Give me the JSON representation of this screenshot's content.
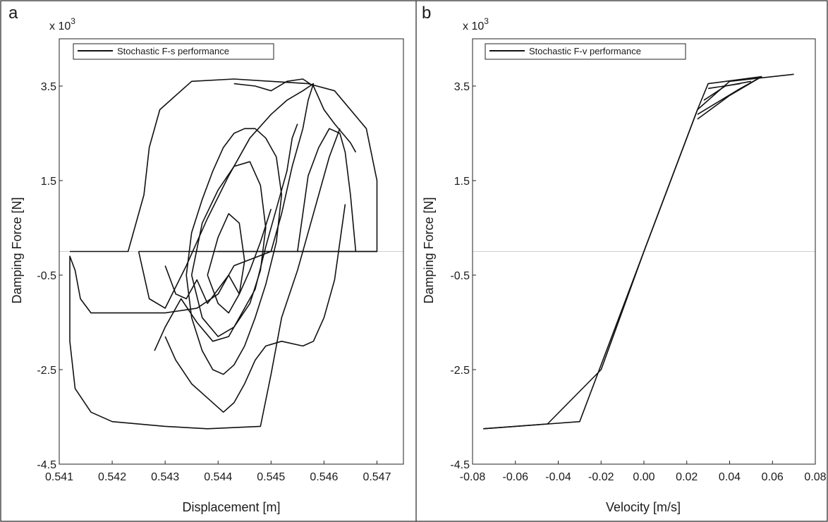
{
  "chart_data": [
    {
      "type": "line",
      "panel_letter": "a",
      "multiplier_label": "x 10",
      "multiplier_exp": "3",
      "xlabel": "Displacement [m]",
      "ylabel": "Damping Force [N]",
      "xlim": [
        0.541,
        0.5475
      ],
      "ylim": [
        -4.5,
        4.5
      ],
      "xticks": [
        "0.541",
        "0.542",
        "0.543",
        "0.544",
        "0.545",
        "0.546",
        "0.547"
      ],
      "yticks": [
        "3.5",
        "1.5",
        "-0.5",
        "-2.5",
        "-4.5"
      ],
      "ytick_values": [
        3.5,
        1.5,
        -0.5,
        -2.5,
        -4.5
      ],
      "grid": false,
      "reference_line_y": 0,
      "legend_position": "top-left",
      "series": [
        {
          "name": "Stochastic F-s performance",
          "color": "#111111",
          "segments": [
            {
              "x": [
                0.5412,
                0.5423,
                0.5426,
                0.5427,
                0.5429,
                0.5435,
                0.5443,
                0.545,
                0.5457,
                0.5462,
                0.5468,
                0.547,
                0.547,
                0.5468,
                0.5465,
                0.5462,
                0.5458,
                0.5455,
                0.545,
                0.5445,
                0.544
              ],
              "y": [
                0.0,
                0.0,
                1.2,
                2.2,
                3.0,
                3.6,
                3.65,
                3.6,
                3.55,
                3.4,
                2.6,
                1.5,
                0.0,
                0.0,
                0.0,
                0.0,
                0.0,
                0.0,
                0.0,
                0.0,
                0.0
              ]
            },
            {
              "x": [
                0.547,
                0.545,
                0.5443,
                0.544,
                0.5436,
                0.543,
                0.542,
                0.5416,
                0.5414,
                0.5413,
                0.5412,
                0.5412,
                0.5413,
                0.5416,
                0.542,
                0.543,
                0.5438,
                0.5448,
                0.5448,
                0.545,
                0.5452,
                0.5455,
                0.5457,
                0.5459,
                0.5461,
                0.5463
              ],
              "y": [
                0.0,
                0.0,
                -0.3,
                -0.9,
                -1.2,
                -1.3,
                -1.3,
                -1.3,
                -1.0,
                -0.4,
                -0.1,
                -1.9,
                -2.9,
                -3.4,
                -3.6,
                -3.7,
                -3.75,
                -3.7,
                -3.7,
                -2.6,
                -1.4,
                -0.4,
                0.4,
                1.2,
                2.0,
                2.6
              ]
            },
            {
              "x": [
                0.5425,
                0.5428,
                0.5432,
                0.5436,
                0.544,
                0.5444,
                0.5447,
                0.545,
                0.5452,
                0.5454,
                0.5456,
                0.5457,
                0.5458,
                0.5456,
                0.5453,
                0.545,
                0.5446,
                0.5442,
                0.5438,
                0.5434,
                0.543,
                0.5427,
                0.5425
              ],
              "y": [
                0.0,
                0.0,
                0.0,
                0.0,
                0.0,
                0.0,
                0.0,
                0.0,
                0.8,
                1.8,
                2.6,
                3.2,
                3.55,
                3.4,
                3.2,
                2.9,
                2.4,
                1.6,
                0.7,
                -0.3,
                -1.2,
                -1.0,
                0.0
              ]
            },
            {
              "x": [
                0.543,
                0.5432,
                0.5435,
                0.5438,
                0.5441,
                0.5443,
                0.5445,
                0.5447,
                0.5449,
                0.5452,
                0.5456,
                0.5458,
                0.546,
                0.5462,
                0.5463,
                0.5464
              ],
              "y": [
                -1.8,
                -2.3,
                -2.8,
                -3.1,
                -3.4,
                -3.2,
                -2.8,
                -2.3,
                -2.0,
                -1.9,
                -2.0,
                -1.9,
                -1.4,
                -0.6,
                0.2,
                1.0
              ]
            },
            {
              "x": [
                0.5443,
                0.5447,
                0.545,
                0.5453,
                0.5456,
                0.5458,
                0.546,
                0.5462,
                0.5465,
                0.5466
              ],
              "y": [
                3.55,
                3.5,
                3.4,
                3.6,
                3.65,
                3.5,
                3.0,
                2.7,
                2.3,
                2.1
              ]
            },
            {
              "x": [
                0.5434,
                0.5435,
                0.5437,
                0.5439,
                0.5441,
                0.5443,
                0.5445,
                0.5447,
                0.5449,
                0.5451,
                0.5452,
                0.5451,
                0.5449,
                0.5447,
                0.5445,
                0.5443,
                0.5441,
                0.5439,
                0.5437,
                0.5435,
                0.5434
              ],
              "y": [
                -0.5,
                0.4,
                1.1,
                1.7,
                2.2,
                2.5,
                2.6,
                2.6,
                2.4,
                2.0,
                1.2,
                0.2,
                -0.7,
                -1.4,
                -2.0,
                -2.4,
                -2.6,
                -2.5,
                -2.1,
                -1.4,
                -0.5
              ]
            },
            {
              "x": [
                0.5435,
                0.5437,
                0.544,
                0.5443,
                0.5446,
                0.5448,
                0.5449,
                0.5448,
                0.5446,
                0.5443,
                0.544,
                0.5437,
                0.5435
              ],
              "y": [
                -0.5,
                0.6,
                1.3,
                1.8,
                1.9,
                1.4,
                0.5,
                -0.4,
                -1.1,
                -1.6,
                -1.8,
                -1.4,
                -0.5
              ]
            },
            {
              "x": [
                0.5438,
                0.544,
                0.5442,
                0.5444,
                0.5445,
                0.5444,
                0.5442,
                0.544,
                0.5438
              ],
              "y": [
                -0.5,
                0.3,
                0.8,
                0.6,
                -0.2,
                -0.9,
                -1.3,
                -1.1,
                -0.5
              ]
            },
            {
              "x": [
                0.5428,
                0.543,
                0.5433,
                0.5436,
                0.5439,
                0.5442,
                0.5444,
                0.5447,
                0.5449,
                0.5451,
                0.5453,
                0.5454,
                0.5455
              ],
              "y": [
                -2.1,
                -1.6,
                -1.0,
                -1.5,
                -1.9,
                -1.8,
                -1.4,
                -0.8,
                0.1,
                0.9,
                1.7,
                2.4,
                2.7
              ]
            },
            {
              "x": [
                0.543,
                0.5432,
                0.5434,
                0.5436,
                0.5438,
                0.544,
                0.5442,
                0.5444,
                0.5446,
                0.5448,
                0.545
              ],
              "y": [
                -0.3,
                -0.9,
                -1.0,
                -0.6,
                -1.1,
                -0.8,
                -0.5,
                -0.9,
                -0.4,
                0.2,
                0.9
              ]
            },
            {
              "x": [
                0.5455,
                0.5456,
                0.5457,
                0.5459,
                0.5461,
                0.5463,
                0.5464,
                0.5465,
                0.5466
              ],
              "y": [
                0.0,
                0.8,
                1.6,
                2.2,
                2.6,
                2.5,
                2.1,
                1.2,
                0.0
              ]
            }
          ]
        }
      ]
    },
    {
      "type": "line",
      "panel_letter": "b",
      "multiplier_label": "x 10",
      "multiplier_exp": "3",
      "xlabel": "Velocity [m/s]",
      "ylabel": "Damping Force [N]",
      "xlim": [
        -0.08,
        0.08
      ],
      "ylim": [
        -4.5,
        4.5
      ],
      "xticks": [
        "-0.08",
        "-0.06",
        "-0.04",
        "-0.02",
        "0.00",
        "0.02",
        "0.04",
        "0.06",
        "0.08"
      ],
      "xtick_values": [
        -0.08,
        -0.06,
        -0.04,
        -0.02,
        0.0,
        0.02,
        0.04,
        0.06,
        0.08
      ],
      "yticks": [
        "3.5",
        "1.5",
        "-0.5",
        "-2.5",
        "-4.5"
      ],
      "ytick_values": [
        3.5,
        1.5,
        -0.5,
        -2.5,
        -4.5
      ],
      "grid": false,
      "reference_line_y": 0,
      "legend_position": "top-left",
      "series": [
        {
          "name": "Stochastic F-v performance",
          "color": "#111111",
          "segments": [
            {
              "x": [
                -0.075,
                -0.03,
                0.025,
                0.04,
                0.07
              ],
              "y": [
                -3.75,
                -3.6,
                3.0,
                3.6,
                3.75
              ]
            },
            {
              "x": [
                -0.075,
                -0.045,
                -0.02,
                0.0,
                0.025,
                0.03,
                0.055
              ],
              "y": [
                -3.75,
                -3.65,
                -2.5,
                0.0,
                3.0,
                3.55,
                3.7
              ]
            },
            {
              "x": [
                0.025,
                0.045,
                0.055
              ],
              "y": [
                2.9,
                3.45,
                3.7
              ]
            },
            {
              "x": [
                0.025,
                0.04,
                0.055
              ],
              "y": [
                2.8,
                3.3,
                3.7
              ]
            },
            {
              "x": [
                0.028,
                0.038,
                0.05
              ],
              "y": [
                3.2,
                3.5,
                3.6
              ]
            },
            {
              "x": [
                0.03,
                0.045
              ],
              "y": [
                3.45,
                3.55
              ]
            }
          ]
        }
      ]
    }
  ]
}
